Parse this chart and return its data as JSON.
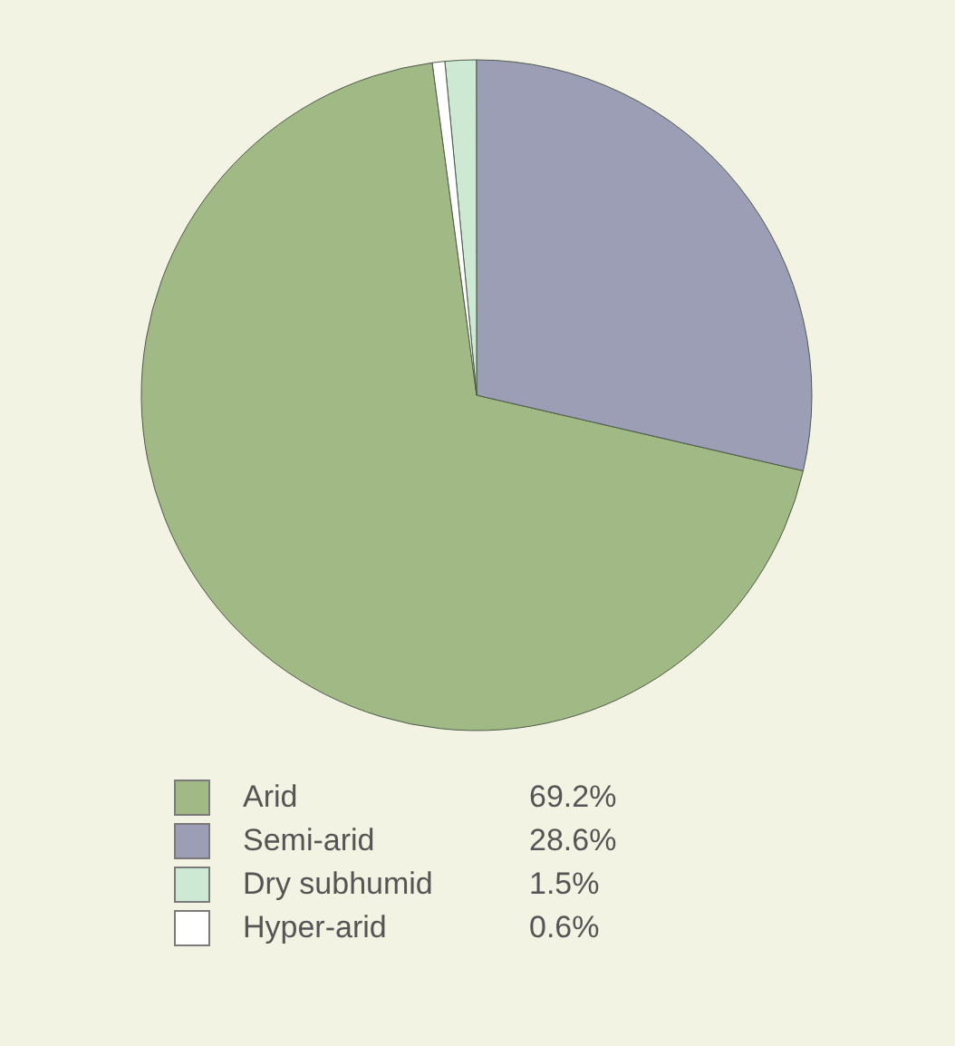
{
  "chart_data": {
    "type": "pie",
    "categories": [
      "Arid",
      "Semi-arid",
      "Dry subhumid",
      "Hyper-arid"
    ],
    "values": [
      69.2,
      28.6,
      1.5,
      0.6
    ],
    "colors": [
      "#a1b985",
      "#9c9eb6",
      "#cde8d3",
      "#ffffff"
    ],
    "value_labels": [
      "69.2%",
      "28.6%",
      "1.5%",
      "0.6%"
    ],
    "legend": "bottom"
  }
}
